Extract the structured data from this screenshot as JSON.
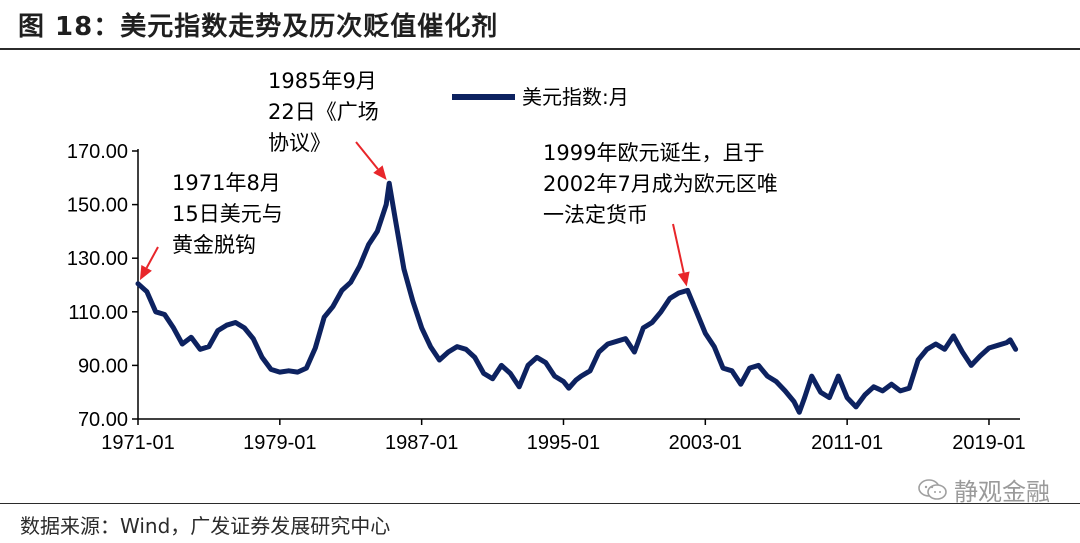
{
  "figure": {
    "title": "图 18：美元指数走势及历次贬值催化剂",
    "source": "数据来源：Wind，广发证券发展研究中心",
    "watermark": "静观金融"
  },
  "chart_data": {
    "type": "line",
    "title": "",
    "xlabel": "",
    "ylabel": "",
    "ylim": [
      70,
      170
    ],
    "yticks": [
      "70.00",
      "90.00",
      "110.00",
      "130.00",
      "150.00",
      "170.00"
    ],
    "xticks": [
      "1971-01",
      "1979-01",
      "1987-01",
      "1995-01",
      "2003-01",
      "2011-01",
      "2019-01"
    ],
    "legend_position": "top-center",
    "grid": false,
    "colors": {
      "series": "#0d2260",
      "annotation_arrow": "#e8262a"
    },
    "series": [
      {
        "name": "美元指数:月",
        "x": [
          1971.0,
          1971.5,
          1972.0,
          1972.5,
          1973.0,
          1973.5,
          1974.0,
          1974.5,
          1975.0,
          1975.5,
          1976.0,
          1976.5,
          1977.0,
          1977.5,
          1978.0,
          1978.5,
          1979.0,
          1979.5,
          1980.0,
          1980.5,
          1981.0,
          1981.5,
          1982.0,
          1982.5,
          1983.0,
          1983.5,
          1984.0,
          1984.5,
          1985.0,
          1985.17,
          1985.5,
          1986.0,
          1986.5,
          1987.0,
          1987.5,
          1988.0,
          1988.5,
          1989.0,
          1989.5,
          1990.0,
          1990.5,
          1991.0,
          1991.5,
          1992.0,
          1992.5,
          1993.0,
          1993.5,
          1994.0,
          1994.5,
          1995.0,
          1995.3,
          1995.7,
          1996.0,
          1996.5,
          1997.0,
          1997.5,
          1998.0,
          1998.5,
          1999.0,
          1999.5,
          2000.0,
          2000.5,
          2001.0,
          2001.5,
          2002.0,
          2002.5,
          2003.0,
          2003.5,
          2004.0,
          2004.5,
          2005.0,
          2005.5,
          2006.0,
          2006.5,
          2007.0,
          2007.5,
          2008.0,
          2008.3,
          2008.6,
          2009.0,
          2009.5,
          2010.0,
          2010.5,
          2011.0,
          2011.5,
          2012.0,
          2012.5,
          2013.0,
          2013.5,
          2014.0,
          2014.5,
          2015.0,
          2015.5,
          2016.0,
          2016.5,
          2017.0,
          2017.5,
          2018.0,
          2018.5,
          2019.0,
          2019.5,
          2020.0,
          2020.2,
          2020.5
        ],
        "values": [
          120.5,
          117.5,
          110.0,
          109.0,
          104.0,
          98.0,
          100.5,
          96.0,
          97.0,
          103.0,
          105.0,
          106.0,
          104.0,
          100.0,
          93.0,
          88.5,
          87.5,
          88.0,
          87.5,
          89.0,
          96.5,
          108.0,
          112.0,
          118.0,
          121.0,
          127.0,
          135.0,
          140.0,
          150.0,
          158.0,
          145.0,
          126.0,
          114.0,
          104.0,
          97.0,
          92.0,
          95.0,
          97.0,
          96.0,
          93.0,
          87.0,
          85.0,
          90.0,
          87.0,
          82.0,
          90.0,
          93.0,
          91.0,
          86.0,
          84.0,
          81.5,
          84.5,
          86.0,
          88.0,
          95.0,
          98.0,
          99.0,
          100.0,
          95.0,
          104.0,
          106.0,
          110.0,
          115.0,
          117.0,
          118.0,
          110.0,
          102.0,
          97.0,
          89.0,
          88.0,
          83.0,
          89.0,
          90.0,
          86.0,
          84.0,
          80.5,
          76.5,
          72.5,
          78.0,
          86.0,
          80.0,
          78.0,
          86.0,
          78.0,
          74.5,
          79.0,
          82.0,
          80.5,
          83.0,
          80.5,
          81.5,
          92.0,
          96.0,
          98.0,
          96.0,
          101.0,
          95.0,
          90.0,
          93.5,
          96.5,
          97.5,
          98.5,
          99.5,
          96.0
        ]
      }
    ],
    "annotations": [
      {
        "lines": [
          "1971年8月",
          "15日美元与",
          "黄金脱钩"
        ],
        "point": [
          1971.0,
          120.5
        ]
      },
      {
        "lines": [
          "1985年9月",
          "22日《广场",
          "协议》"
        ],
        "point": [
          1985.17,
          158.0
        ]
      },
      {
        "lines": [
          "1999年欧元诞生，且于",
          "2002年7月成为欧元区唯",
          "一法定货币"
        ],
        "point": [
          2002.0,
          118.0
        ]
      }
    ]
  }
}
